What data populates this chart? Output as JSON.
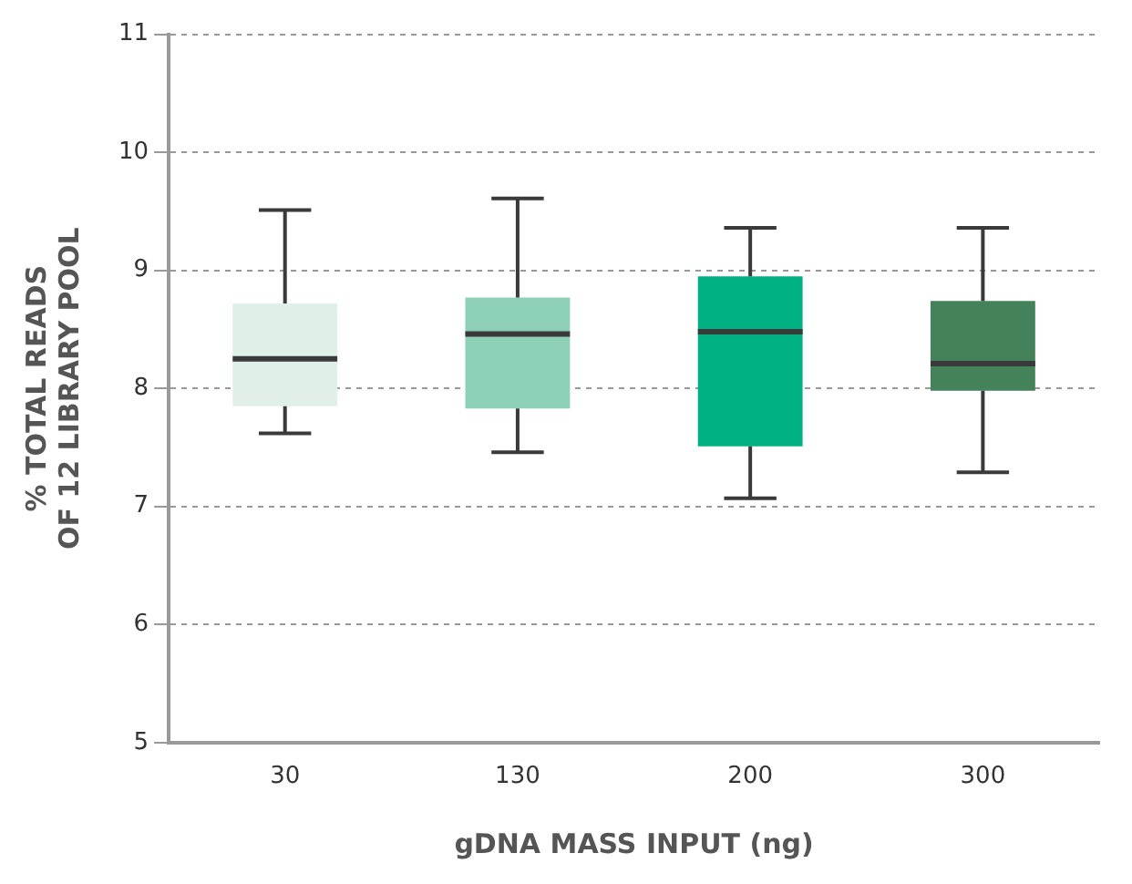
{
  "chart_data": {
    "type": "box",
    "categories": [
      "30",
      "130",
      "200",
      "300"
    ],
    "xlabel": "gDNA MASS INPUT (ng)",
    "ylabel": "% TOTAL READS\nOF 12 LIBRARY POOL",
    "colors": [
      "#e0f0e8",
      "#8dd0b6",
      "#00b183",
      "#44825c"
    ],
    "boxes": [
      {
        "low": 7.62,
        "q1": 7.85,
        "median": 8.25,
        "q3": 8.72,
        "high": 9.51
      },
      {
        "low": 7.46,
        "q1": 7.83,
        "median": 8.46,
        "q3": 8.77,
        "high": 9.61
      },
      {
        "low": 7.07,
        "q1": 7.51,
        "median": 8.48,
        "q3": 8.95,
        "high": 9.36
      },
      {
        "low": 7.29,
        "q1": 7.98,
        "median": 8.21,
        "q3": 8.74,
        "high": 9.36
      }
    ],
    "ylim": [
      5,
      11
    ],
    "yticks": [
      5,
      6,
      7,
      8,
      9,
      10,
      11
    ],
    "grid": "y",
    "legend": false
  }
}
